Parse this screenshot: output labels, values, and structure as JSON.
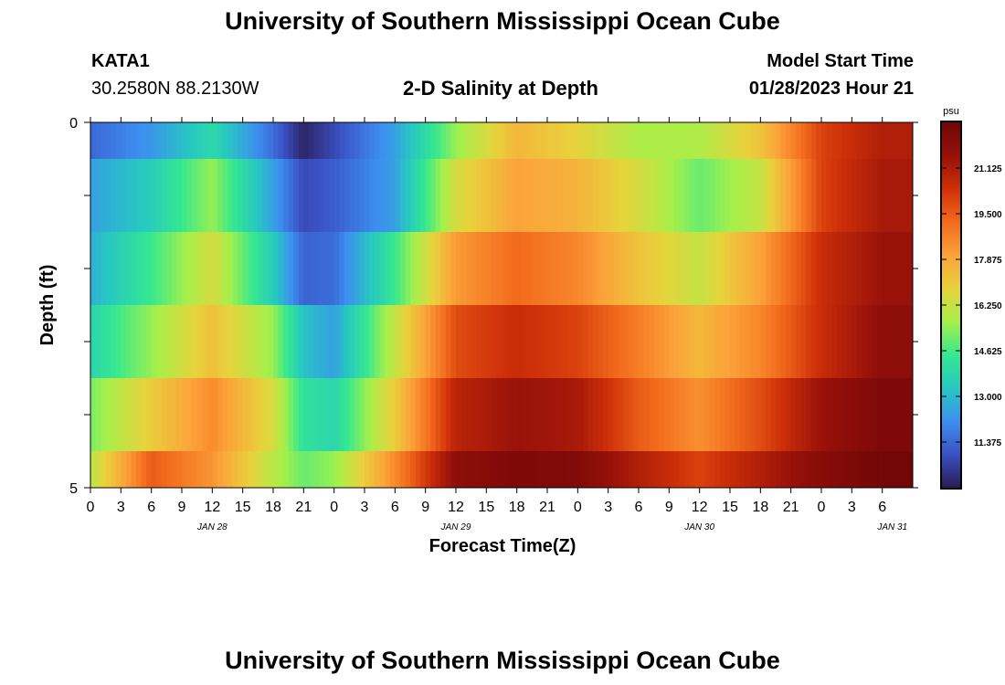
{
  "page": {
    "title": "University of Southern Mississippi Ocean Cube",
    "footer_title": "University of Southern Mississippi Ocean Cube",
    "station": "KATA1",
    "coordinates": "30.2580N  88.2130W",
    "plot_title": "2-D Salinity at Depth",
    "model_start_label": "Model Start Time",
    "model_start_value": "01/28/2023 Hour 21"
  },
  "colorbar": {
    "unit": "psu",
    "ticks": [
      "21.125",
      "19.500",
      "17.875",
      "16.250",
      "14.625",
      "13.000",
      "11.375"
    ],
    "min": 9.75,
    "max": 22.75,
    "stops": [
      "#2a1a4e",
      "#3a4fc2",
      "#3d8ef0",
      "#27c7c2",
      "#35e890",
      "#a6f04a",
      "#e8d23c",
      "#fca23a",
      "#f26a1c",
      "#cd2f08",
      "#96100a",
      "#6e0606"
    ]
  },
  "chart_data": {
    "type": "heatmap",
    "title": "2-D Salinity at Depth",
    "xlabel": "Forecast Time(Z)",
    "ylabel": "Depth (ft)",
    "x_tick_labels": [
      "0",
      "3",
      "6",
      "9",
      "12",
      "15",
      "18",
      "21",
      "0",
      "3",
      "6",
      "9",
      "12",
      "15",
      "18",
      "21",
      "0",
      "3",
      "6",
      "9",
      "12",
      "15",
      "18",
      "21",
      "0",
      "3",
      "6"
    ],
    "date_labels": [
      "JAN 28",
      "JAN 29",
      "JAN 30",
      "JAN 31"
    ],
    "y_tick_labels": [
      "0",
      "5"
    ],
    "ylim": [
      0,
      5
    ],
    "x_hours": [
      0,
      6,
      12,
      18,
      21,
      24,
      30,
      36,
      42,
      48,
      54,
      60,
      66,
      72,
      78
    ],
    "depths": [
      0.25,
      1,
      2,
      3,
      4,
      4.75
    ],
    "values": [
      [
        11.4,
        12.3,
        13.9,
        11.5,
        10.0,
        10.8,
        12.5,
        15.5,
        17.5,
        16.8,
        15.8,
        15.8,
        17.2,
        20.0,
        21.0
      ],
      [
        12.5,
        13.5,
        15.5,
        12.5,
        10.8,
        11.2,
        12.5,
        16.5,
        18.0,
        17.6,
        16.5,
        15.0,
        16.2,
        20.0,
        21.2
      ],
      [
        12.8,
        14.5,
        16.5,
        13.5,
        11.3,
        11.5,
        14.5,
        18.2,
        19.2,
        18.6,
        17.2,
        16.2,
        18.0,
        20.5,
        21.5
      ],
      [
        13.8,
        15.5,
        17.3,
        15.5,
        13.2,
        12.5,
        16.2,
        19.8,
        20.5,
        20.0,
        18.8,
        17.5,
        18.6,
        20.5,
        21.8
      ],
      [
        15.2,
        17.0,
        18.5,
        16.5,
        14.2,
        13.8,
        17.0,
        20.8,
        21.5,
        21.2,
        19.5,
        18.4,
        19.8,
        21.5,
        22.3
      ],
      [
        16.0,
        19.5,
        18.3,
        16.0,
        15.0,
        15.5,
        18.5,
        21.8,
        22.3,
        22.2,
        21.0,
        20.0,
        21.0,
        22.0,
        22.6
      ]
    ]
  }
}
